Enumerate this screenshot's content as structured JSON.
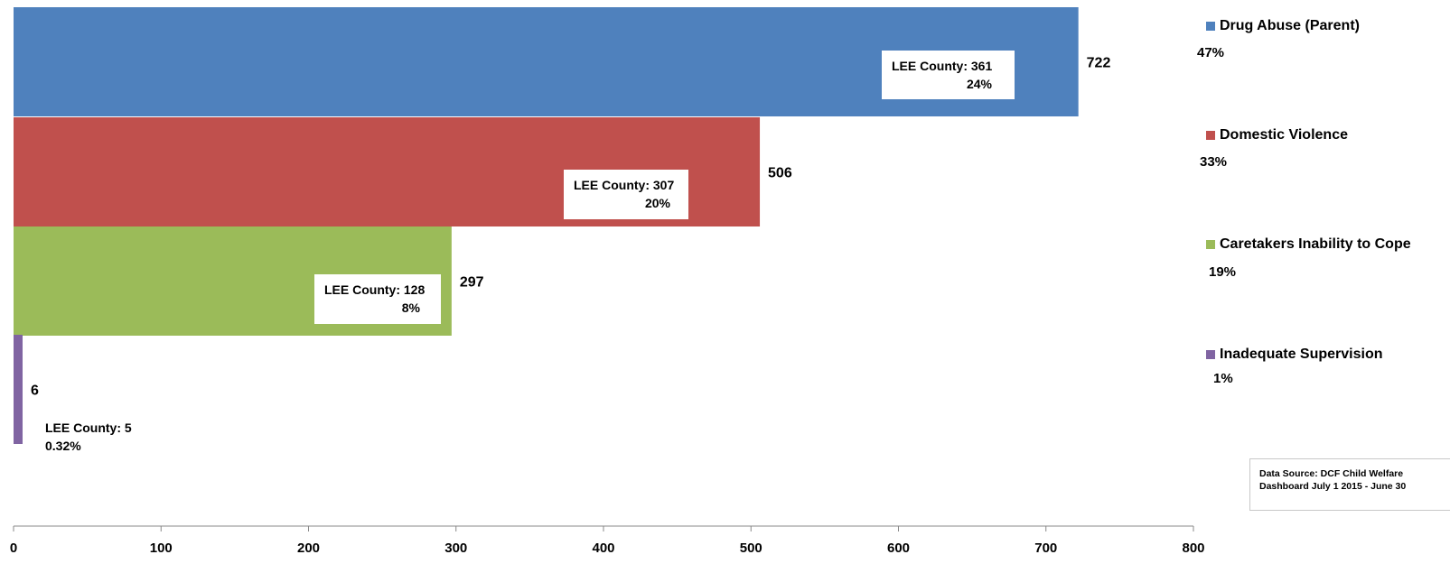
{
  "chart_data": {
    "type": "bar",
    "orientation": "horizontal",
    "categories": [
      "Drug Abuse (Parent)",
      "Domestic Violence",
      "Caretakers Inability to Cope",
      "Inadequate Supervision"
    ],
    "values": [
      722,
      506,
      297,
      6
    ],
    "value_labels": [
      "722",
      "506",
      "297",
      "6"
    ],
    "percent_labels": [
      "47%",
      "33%",
      "19%",
      "1%"
    ],
    "lee_county_labels": [
      {
        "line1": "LEE County: 361",
        "line2": "24%"
      },
      {
        "line1": "LEE County: 307",
        "line2": "20%"
      },
      {
        "line1": "LEE County: 128",
        "line2": "8%"
      },
      {
        "line1": "LEE County: 5",
        "line2": "0.32%"
      }
    ],
    "colors": [
      "#4f81bd",
      "#c0504d",
      "#9bbb59",
      "#8064a2"
    ],
    "xlim": [
      0,
      800
    ],
    "x_ticks": [
      0,
      100,
      200,
      300,
      400,
      500,
      600,
      700,
      800
    ],
    "x_tick_labels": [
      "0",
      "100",
      "200",
      "300",
      "400",
      "500",
      "600",
      "700",
      "800"
    ],
    "legend_position": "right",
    "grid": false,
    "source_note": {
      "line1": "Data Source: DCF Child Welfare",
      "line2": "Dashboard July 1 2015 - June 30"
    }
  }
}
